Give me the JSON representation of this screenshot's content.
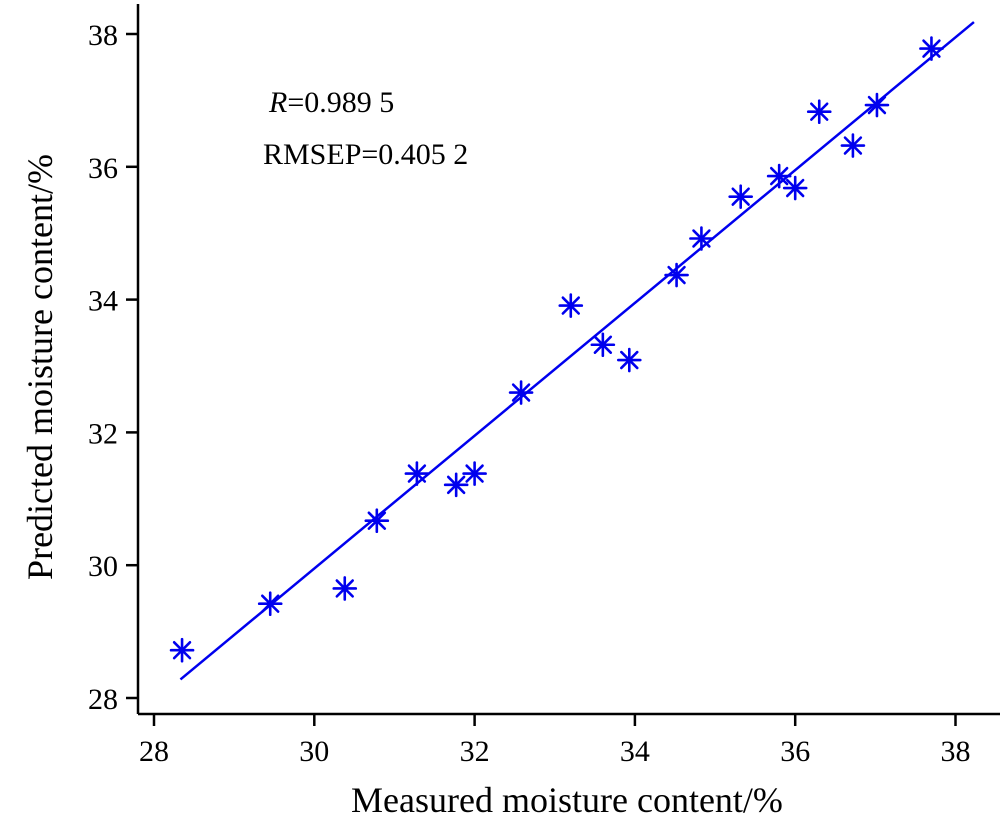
{
  "chart_data": {
    "type": "scatter",
    "xlabel": "Measured moisture content/%",
    "ylabel": "Predicted moisture content/%",
    "xlim": [
      27.9,
      38.3
    ],
    "ylim": [
      27.9,
      38.5
    ],
    "x_ticks": [
      28,
      30,
      32,
      34,
      36,
      38
    ],
    "y_ticks": [
      28,
      30,
      32,
      34,
      36,
      38
    ],
    "grid": false,
    "marker": "asterisk",
    "color": "#0000ee",
    "points": [
      {
        "x": 28.35,
        "y": 28.72
      },
      {
        "x": 29.45,
        "y": 29.42
      },
      {
        "x": 30.38,
        "y": 29.65
      },
      {
        "x": 30.78,
        "y": 30.67
      },
      {
        "x": 31.28,
        "y": 31.38
      },
      {
        "x": 31.77,
        "y": 31.21
      },
      {
        "x": 32.0,
        "y": 31.38
      },
      {
        "x": 32.58,
        "y": 32.6
      },
      {
        "x": 33.2,
        "y": 33.91
      },
      {
        "x": 33.6,
        "y": 33.32
      },
      {
        "x": 33.93,
        "y": 33.09
      },
      {
        "x": 34.52,
        "y": 34.37
      },
      {
        "x": 34.83,
        "y": 34.92
      },
      {
        "x": 35.32,
        "y": 35.55
      },
      {
        "x": 35.8,
        "y": 35.86
      },
      {
        "x": 36.0,
        "y": 35.68
      },
      {
        "x": 36.3,
        "y": 36.83
      },
      {
        "x": 36.72,
        "y": 36.32
      },
      {
        "x": 37.02,
        "y": 36.93
      },
      {
        "x": 37.7,
        "y": 37.78
      }
    ],
    "fit_line": {
      "x": [
        28.33,
        38.23
      ],
      "y": [
        28.28,
        38.18
      ]
    },
    "annotations": {
      "r_symbol": "R",
      "r_value": "=0.989 5",
      "rmsep": "RMSEP=0.405 2"
    }
  }
}
